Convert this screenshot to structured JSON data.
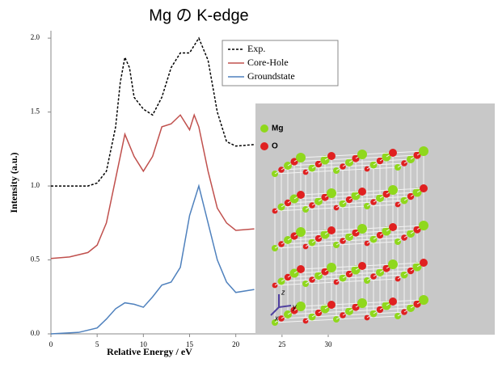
{
  "chart_data": {
    "type": "line",
    "title": "Mg の K-edge",
    "xlabel": "Relative Energy / eV",
    "ylabel": "Intensity (a.u.)",
    "xlim": [
      0,
      30
    ],
    "ylim": [
      0,
      2.05
    ],
    "xticks": [
      0,
      5,
      10,
      15,
      20,
      25,
      30
    ],
    "yticks": [
      {
        "value": 0,
        "label": "0.0"
      },
      0.5,
      {
        "value": 1,
        "label": "1.0"
      },
      1.5,
      {
        "value": 2,
        "label": "2.0"
      }
    ],
    "series": [
      {
        "name": "Exp.",
        "color": "#000000",
        "linestyle": "dashed",
        "x": [
          0,
          2,
          4,
          5,
          6,
          7,
          7.5,
          8,
          8.5,
          9,
          10,
          11,
          12,
          13,
          14,
          15,
          16,
          17,
          18,
          19,
          20,
          22
        ],
        "values": [
          1.0,
          1.0,
          1.0,
          1.02,
          1.1,
          1.4,
          1.7,
          1.87,
          1.8,
          1.6,
          1.52,
          1.48,
          1.6,
          1.8,
          1.9,
          1.9,
          2.0,
          1.85,
          1.5,
          1.3,
          1.27,
          1.28
        ]
      },
      {
        "name": "Core-Hole",
        "color": "#c0504d",
        "linestyle": "solid",
        "x": [
          0,
          2,
          4,
          5,
          6,
          7,
          8,
          9,
          10,
          11,
          12,
          13,
          14,
          15,
          15.5,
          16,
          17,
          18,
          19,
          20,
          22
        ],
        "values": [
          0.51,
          0.52,
          0.55,
          0.6,
          0.75,
          1.05,
          1.35,
          1.2,
          1.1,
          1.2,
          1.4,
          1.42,
          1.48,
          1.38,
          1.48,
          1.4,
          1.1,
          0.85,
          0.75,
          0.7,
          0.71
        ]
      },
      {
        "name": "Groundstate",
        "color": "#4f81bd",
        "linestyle": "solid",
        "x": [
          0,
          3,
          5,
          6,
          7,
          8,
          9,
          10,
          11,
          12,
          13,
          14,
          15,
          16,
          17,
          18,
          19,
          20,
          22
        ],
        "values": [
          0.0,
          0.01,
          0.04,
          0.1,
          0.17,
          0.21,
          0.2,
          0.18,
          0.25,
          0.33,
          0.35,
          0.45,
          0.8,
          1.0,
          0.75,
          0.5,
          0.35,
          0.28,
          0.3
        ]
      }
    ]
  },
  "inset": {
    "legend": [
      "Mg",
      "O"
    ],
    "axis_labels": [
      "z",
      "y",
      "x"
    ]
  }
}
